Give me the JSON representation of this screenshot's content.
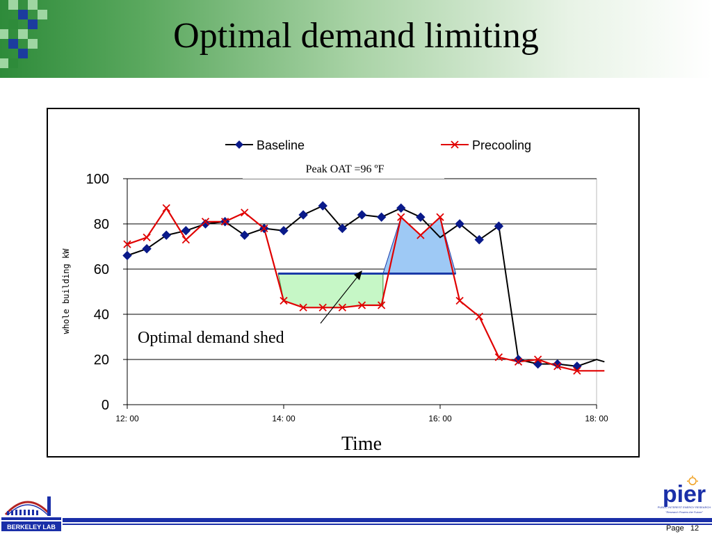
{
  "slide": {
    "title": "Optimal demand limiting",
    "page_label": "Page",
    "page_number": "12",
    "colors": {
      "header_green": "#2e8b3a",
      "footer_blue": "#1a2fa8"
    }
  },
  "logos": {
    "left": {
      "icon": "berkeley-lab-logo",
      "text": "BERKELEY LAB"
    },
    "right": {
      "icon": "pier-logo",
      "text": "pier",
      "tagline": "PUBLIC INTEREST ENERGY RESEARCH",
      "subtagline": "\"Research Powers the Future\""
    }
  },
  "chart_data": {
    "type": "line",
    "ylabel": "whole building kW",
    "xlabel": "Time",
    "annotation": "Peak OAT =96 ºF",
    "shed_label": "Optimal demand shed",
    "ylim": [
      0,
      100
    ],
    "yticks": [
      "0",
      "20",
      "40",
      "60",
      "80",
      "100"
    ],
    "xlim": [
      12,
      18.1
    ],
    "xticks": [
      {
        "value": 12,
        "label": "12: 00"
      },
      {
        "value": 14,
        "label": "14: 00"
      },
      {
        "value": 16,
        "label": "16: 00"
      },
      {
        "value": 18,
        "label": "18: 00"
      }
    ],
    "grid": true,
    "legend_position": "top",
    "demand_limit": 58,
    "shed_color": "#c6f7c6",
    "rebound_color": "#9ec9f5",
    "series": [
      {
        "name": "Baseline",
        "color": "#000000",
        "marker_color": "#0a1a8a",
        "marker": "diamond",
        "x": [
          12.0,
          12.25,
          12.5,
          12.75,
          13.0,
          13.25,
          13.5,
          13.75,
          14.0,
          14.25,
          14.5,
          14.75,
          15.0,
          15.25,
          15.5,
          15.75,
          16.0,
          16.25,
          16.5,
          16.75,
          17.0,
          17.25,
          17.5,
          17.75,
          18.0,
          18.1
        ],
        "values": [
          66,
          69,
          75,
          77,
          80,
          81,
          75,
          78,
          77,
          84,
          88,
          78,
          84,
          83,
          87,
          83,
          74,
          80,
          73,
          79,
          20,
          18,
          18,
          17,
          20,
          19
        ],
        "markers": [
          true,
          true,
          true,
          true,
          true,
          true,
          true,
          true,
          true,
          true,
          true,
          true,
          true,
          true,
          true,
          true,
          false,
          true,
          true,
          true,
          true,
          true,
          true,
          true,
          false,
          false
        ]
      },
      {
        "name": "Precooling",
        "color": "#e00000",
        "marker": "x",
        "x": [
          12.0,
          12.25,
          12.5,
          12.75,
          13.0,
          13.25,
          13.5,
          13.75,
          14.0,
          14.25,
          14.5,
          14.75,
          15.0,
          15.25,
          15.5,
          15.75,
          16.0,
          16.25,
          16.5,
          16.75,
          17.0,
          17.25,
          17.5,
          17.75,
          18.0,
          18.1
        ],
        "values": [
          71,
          74,
          87,
          73,
          81,
          81,
          85,
          78,
          46,
          43,
          43,
          43,
          44,
          44,
          83,
          75,
          83,
          46,
          39,
          21,
          19,
          20,
          17,
          15,
          15,
          15
        ],
        "markers": [
          true,
          true,
          true,
          true,
          true,
          true,
          true,
          true,
          true,
          true,
          true,
          true,
          true,
          true,
          true,
          true,
          true,
          true,
          true,
          true,
          true,
          true,
          true,
          true,
          false,
          false
        ]
      }
    ],
    "shed_region": {
      "x_start": 13.93,
      "x_end": 15.27
    },
    "rebound_region": {
      "x_start": 15.27,
      "x_end": 16.2
    }
  }
}
